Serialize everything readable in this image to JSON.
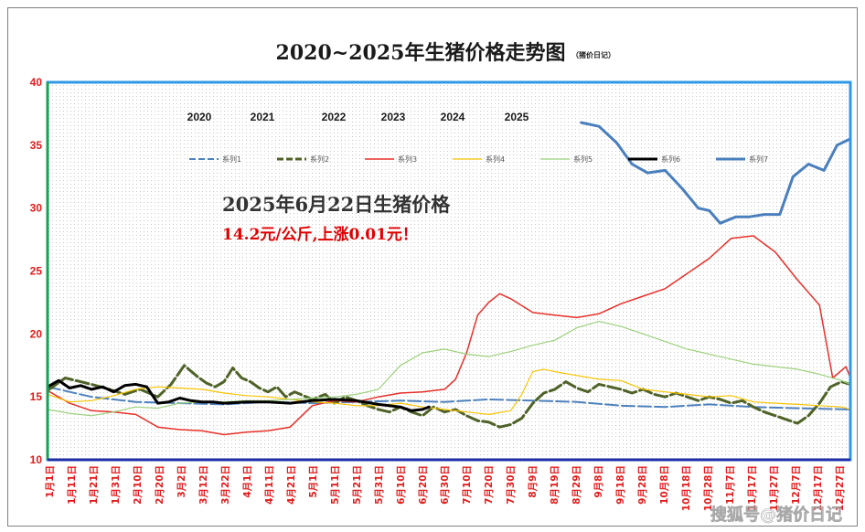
{
  "chart_data": {
    "type": "line",
    "title": "2020~2025年生猪价格走势图",
    "subtitle": "（猪价日记）",
    "xlabel": "",
    "ylabel": "",
    "ylim": [
      10,
      40
    ],
    "yticks": [
      10,
      15,
      20,
      25,
      30,
      35,
      40
    ],
    "grid": "dotted-background",
    "legend_position": "top",
    "year_labels": [
      "2020",
      "2021",
      "2022",
      "2023",
      "2024",
      "2025"
    ],
    "x_tick_labels": [
      "1月1日",
      "1月11日",
      "1月21日",
      "1月31日",
      "2月10日",
      "2月20日",
      "3月2日",
      "3月12日",
      "3月22日",
      "4月1日",
      "4月11日",
      "4月21日",
      "5月1日",
      "5月11日",
      "5月21日",
      "5月31日",
      "6月10日",
      "6月20日",
      "6月30日",
      "7月10日",
      "7月20日",
      "7月30日",
      "8月9日",
      "8月19日",
      "8月29日",
      "9月8日",
      "9月18日",
      "9月28日",
      "10月8日",
      "10月18日",
      "10月28日",
      "11月7日",
      "11月17日",
      "11月27日",
      "12月7日",
      "12月17日",
      "12月27日"
    ],
    "annotation": {
      "headline": "2025年6月22日生猪价格",
      "detail": "14.2元/公斤,上涨0.01元！"
    },
    "watermark": "搜狐号@猪价日记",
    "series": [
      {
        "name": "系列1",
        "color": "#4f81bd",
        "dash": "dash",
        "width": 2,
        "x": [
          0,
          20,
          40,
          60,
          80,
          100,
          120,
          140,
          160,
          180,
          200,
          220,
          240,
          260,
          280,
          300,
          320,
          340,
          364
        ],
        "y": [
          15.8,
          15.0,
          14.6,
          14.5,
          14.4,
          14.6,
          14.5,
          14.6,
          14.7,
          14.6,
          14.8,
          14.7,
          14.6,
          14.3,
          14.2,
          14.4,
          14.2,
          14.1,
          14.0
        ]
      },
      {
        "name": "系列2",
        "color": "#4f6228",
        "dash": "dash",
        "width": 3,
        "x": [
          0,
          8,
          15,
          22,
          28,
          35,
          42,
          50,
          56,
          62,
          68,
          72,
          76,
          80,
          84,
          88,
          92,
          96,
          100,
          104,
          108,
          112,
          116,
          120,
          126,
          130,
          135,
          140,
          145,
          150,
          155,
          160,
          165,
          170,
          175,
          180,
          185,
          190,
          195,
          200,
          205,
          210,
          215,
          220,
          225,
          230,
          235,
          240,
          245,
          250,
          255,
          260,
          265,
          270,
          275,
          280,
          285,
          290,
          295,
          300,
          305,
          310,
          315,
          320,
          325,
          330,
          335,
          340,
          345,
          350,
          355,
          360,
          364
        ],
        "y": [
          15.5,
          16.5,
          16.2,
          15.9,
          15.6,
          15.2,
          15.6,
          15.0,
          16.0,
          17.5,
          16.6,
          16.1,
          15.8,
          16.2,
          17.3,
          16.5,
          16.2,
          15.7,
          15.4,
          15.8,
          15.0,
          15.4,
          15.1,
          14.8,
          15.2,
          14.5,
          15.0,
          14.7,
          14.3,
          14.0,
          13.8,
          14.2,
          13.8,
          13.5,
          14.2,
          13.8,
          14.0,
          13.5,
          13.1,
          13.0,
          12.6,
          12.8,
          13.3,
          14.5,
          15.3,
          15.6,
          16.2,
          15.7,
          15.4,
          16.0,
          15.8,
          15.6,
          15.3,
          15.6,
          15.2,
          15.0,
          15.3,
          15.0,
          14.7,
          15.0,
          14.8,
          14.5,
          14.7,
          14.2,
          13.8,
          13.5,
          13.2,
          12.9,
          13.5,
          14.5,
          15.8,
          16.2,
          16.0
        ]
      },
      {
        "name": "系列3",
        "color": "#e8302a",
        "dash": "solid",
        "width": 1.5,
        "x": [
          0,
          10,
          20,
          30,
          40,
          50,
          60,
          70,
          80,
          90,
          100,
          110,
          120,
          130,
          140,
          150,
          160,
          170,
          180,
          185,
          190,
          195,
          200,
          205,
          210,
          220,
          230,
          240,
          250,
          260,
          270,
          280,
          290,
          300,
          310,
          320,
          330,
          340,
          350,
          356,
          362,
          364
        ],
        "y": [
          15.5,
          14.5,
          13.9,
          13.8,
          13.6,
          12.6,
          12.4,
          12.3,
          12.0,
          12.2,
          12.3,
          12.6,
          14.3,
          14.7,
          14.6,
          15.0,
          15.3,
          15.4,
          15.6,
          16.4,
          18.5,
          21.5,
          22.5,
          23.2,
          22.8,
          21.7,
          21.5,
          21.3,
          21.6,
          22.4,
          23.0,
          23.6,
          24.8,
          26.0,
          27.6,
          27.8,
          26.5,
          24.3,
          22.3,
          16.5,
          17.4,
          16.5
        ]
      },
      {
        "name": "系列4",
        "color": "#f7c300",
        "dash": "solid",
        "width": 1.2,
        "x": [
          0,
          10,
          20,
          30,
          40,
          50,
          60,
          70,
          80,
          90,
          100,
          110,
          120,
          130,
          140,
          150,
          160,
          170,
          180,
          190,
          200,
          210,
          215,
          220,
          225,
          230,
          240,
          250,
          260,
          270,
          280,
          290,
          300,
          310,
          320,
          330,
          340,
          350,
          360,
          364
        ],
        "y": [
          15.2,
          14.6,
          14.7,
          15.1,
          15.6,
          15.8,
          15.7,
          15.6,
          15.3,
          15.1,
          15.0,
          14.8,
          14.6,
          14.5,
          14.3,
          14.3,
          14.5,
          14.2,
          14.0,
          13.8,
          13.6,
          13.9,
          15.2,
          17.0,
          17.2,
          17.0,
          16.7,
          16.4,
          16.3,
          15.6,
          15.4,
          15.2,
          15.0,
          15.1,
          14.6,
          14.5,
          14.4,
          14.3,
          14.2,
          14.0
        ]
      },
      {
        "name": "系列5",
        "color": "#9bd17b",
        "dash": "solid",
        "width": 1.2,
        "x": [
          0,
          10,
          20,
          30,
          40,
          50,
          60,
          70,
          80,
          90,
          100,
          110,
          120,
          130,
          140,
          150,
          160,
          170,
          180,
          190,
          200,
          210,
          220,
          230,
          240,
          250,
          260,
          270,
          280,
          290,
          300,
          310,
          320,
          330,
          340,
          350,
          360,
          364
        ],
        "y": [
          14.0,
          13.7,
          13.5,
          13.8,
          14.2,
          14.1,
          14.5,
          14.6,
          14.6,
          14.7,
          14.7,
          14.8,
          14.9,
          15.0,
          15.2,
          15.6,
          17.5,
          18.5,
          18.8,
          18.4,
          18.2,
          18.6,
          19.1,
          19.5,
          20.5,
          21.0,
          20.6,
          20.0,
          19.4,
          18.8,
          18.4,
          18.0,
          17.6,
          17.4,
          17.2,
          16.8,
          16.3,
          16.0
        ]
      },
      {
        "name": "系列6",
        "color": "#000000",
        "dash": "solid",
        "width": 3,
        "x": [
          0,
          5,
          10,
          15,
          20,
          25,
          30,
          35,
          40,
          45,
          50,
          55,
          60,
          65,
          70,
          75,
          80,
          90,
          100,
          110,
          120,
          130,
          140,
          150,
          160,
          165,
          170,
          173
        ],
        "y": [
          15.8,
          16.3,
          15.7,
          15.9,
          15.6,
          15.8,
          15.4,
          15.9,
          16.0,
          15.8,
          14.5,
          14.6,
          14.9,
          14.7,
          14.6,
          14.6,
          14.5,
          14.6,
          14.6,
          14.5,
          14.7,
          14.8,
          14.7,
          14.4,
          14.2,
          13.9,
          14.0,
          14.2
        ]
      },
      {
        "name": "系列7",
        "color": "#4a7fbd",
        "dash": "solid",
        "width": 3,
        "x": [
          242,
          250,
          258,
          265,
          272,
          280,
          288,
          295,
          300,
          305,
          312,
          318,
          325,
          332,
          338,
          345,
          352,
          358,
          364
        ],
        "y": [
          36.8,
          36.5,
          35.2,
          33.5,
          32.8,
          33.0,
          31.5,
          30.0,
          29.8,
          28.8,
          29.3,
          29.3,
          29.5,
          29.5,
          32.5,
          33.5,
          33.0,
          35.0,
          35.5
        ]
      }
    ]
  }
}
